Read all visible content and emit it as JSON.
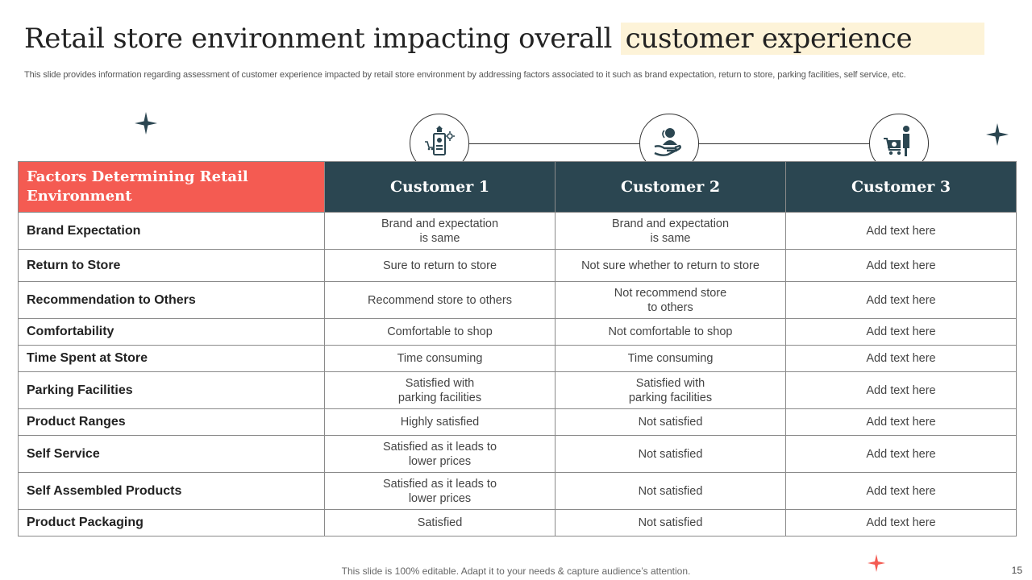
{
  "header": {
    "title_main": "Retail store environment impacting overall ",
    "title_highlight": "customer experience",
    "subtitle": "This slide provides information regarding assessment of customer experience impacted by retail store environment by addressing factors associated to it such as brand expectation, return to store, parking facilities, self service, etc."
  },
  "icons": [
    "store-display-icon",
    "hand-holding-person-icon",
    "shopper-with-cart-icon"
  ],
  "colors": {
    "accent": "#f45b52",
    "header_dark": "#2b4651",
    "highlight": "#fdf3d8"
  },
  "table": {
    "headers": [
      "Factors Determining Retail Environment",
      "Customer 1",
      "Customer 2",
      "Customer 3"
    ],
    "rows": [
      [
        "Brand Expectation",
        "Brand and expectation\nis same",
        "Brand and expectation\nis same",
        "Add text here"
      ],
      [
        "Return to Store",
        "Sure to return to store",
        "Not sure whether to return to store",
        "Add text here"
      ],
      [
        "Recommendation to Others",
        "Recommend store to others",
        "Not recommend store\nto others",
        "Add text here"
      ],
      [
        "Comfortability",
        "Comfortable to shop",
        "Not comfortable to shop",
        "Add text here"
      ],
      [
        "Time Spent at Store",
        "Time consuming",
        "Time consuming",
        "Add text here"
      ],
      [
        "Parking Facilities",
        "Satisfied with\nparking facilities",
        "Satisfied with\nparking facilities",
        "Add text here"
      ],
      [
        "Product Ranges",
        "Highly satisfied",
        "Not satisfied",
        "Add text here"
      ],
      [
        "Self Service",
        "Satisfied as it leads to\nlower prices",
        "Not satisfied",
        "Add text here"
      ],
      [
        "Self Assembled Products",
        "Satisfied as it leads to\nlower prices",
        "Not satisfied",
        "Add text here"
      ],
      [
        "Product Packaging",
        "Satisfied",
        "Not satisfied",
        "Add text here"
      ]
    ]
  },
  "footer": {
    "note": "This slide is 100% editable. Adapt it to your needs & capture audience’s attention.",
    "page_number": "15"
  }
}
